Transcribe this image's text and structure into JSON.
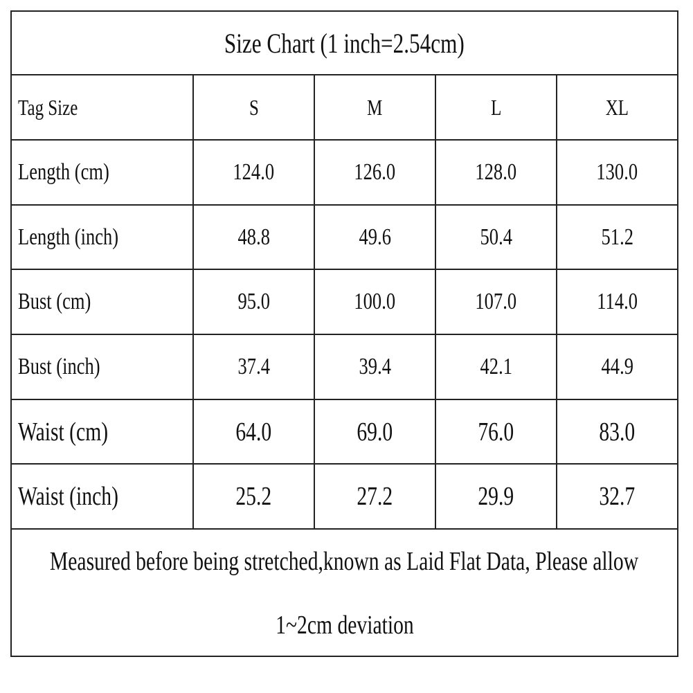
{
  "table": {
    "title": "Size Chart (1 inch=2.54cm)",
    "header": [
      "Tag Size",
      "S",
      "M",
      "L",
      "XL"
    ],
    "rows": [
      [
        "Length (cm)",
        "124.0",
        "126.0",
        "128.0",
        "130.0"
      ],
      [
        "Length (inch)",
        "48.8",
        "49.6",
        "50.4",
        "51.2"
      ],
      [
        "Bust (cm)",
        "95.0",
        "100.0",
        "107.0",
        "114.0"
      ],
      [
        "Bust (inch)",
        "37.4",
        "39.4",
        "42.1",
        "44.9"
      ],
      [
        "Waist (cm)",
        "64.0",
        "69.0",
        "76.0",
        "83.0"
      ],
      [
        "Waist (inch)",
        "25.2",
        "27.2",
        "29.9",
        "32.7"
      ]
    ],
    "note_lines": [
      "Measured before being stretched,known as Laid Flat Data, Please allow",
      "1~2cm deviation"
    ]
  }
}
